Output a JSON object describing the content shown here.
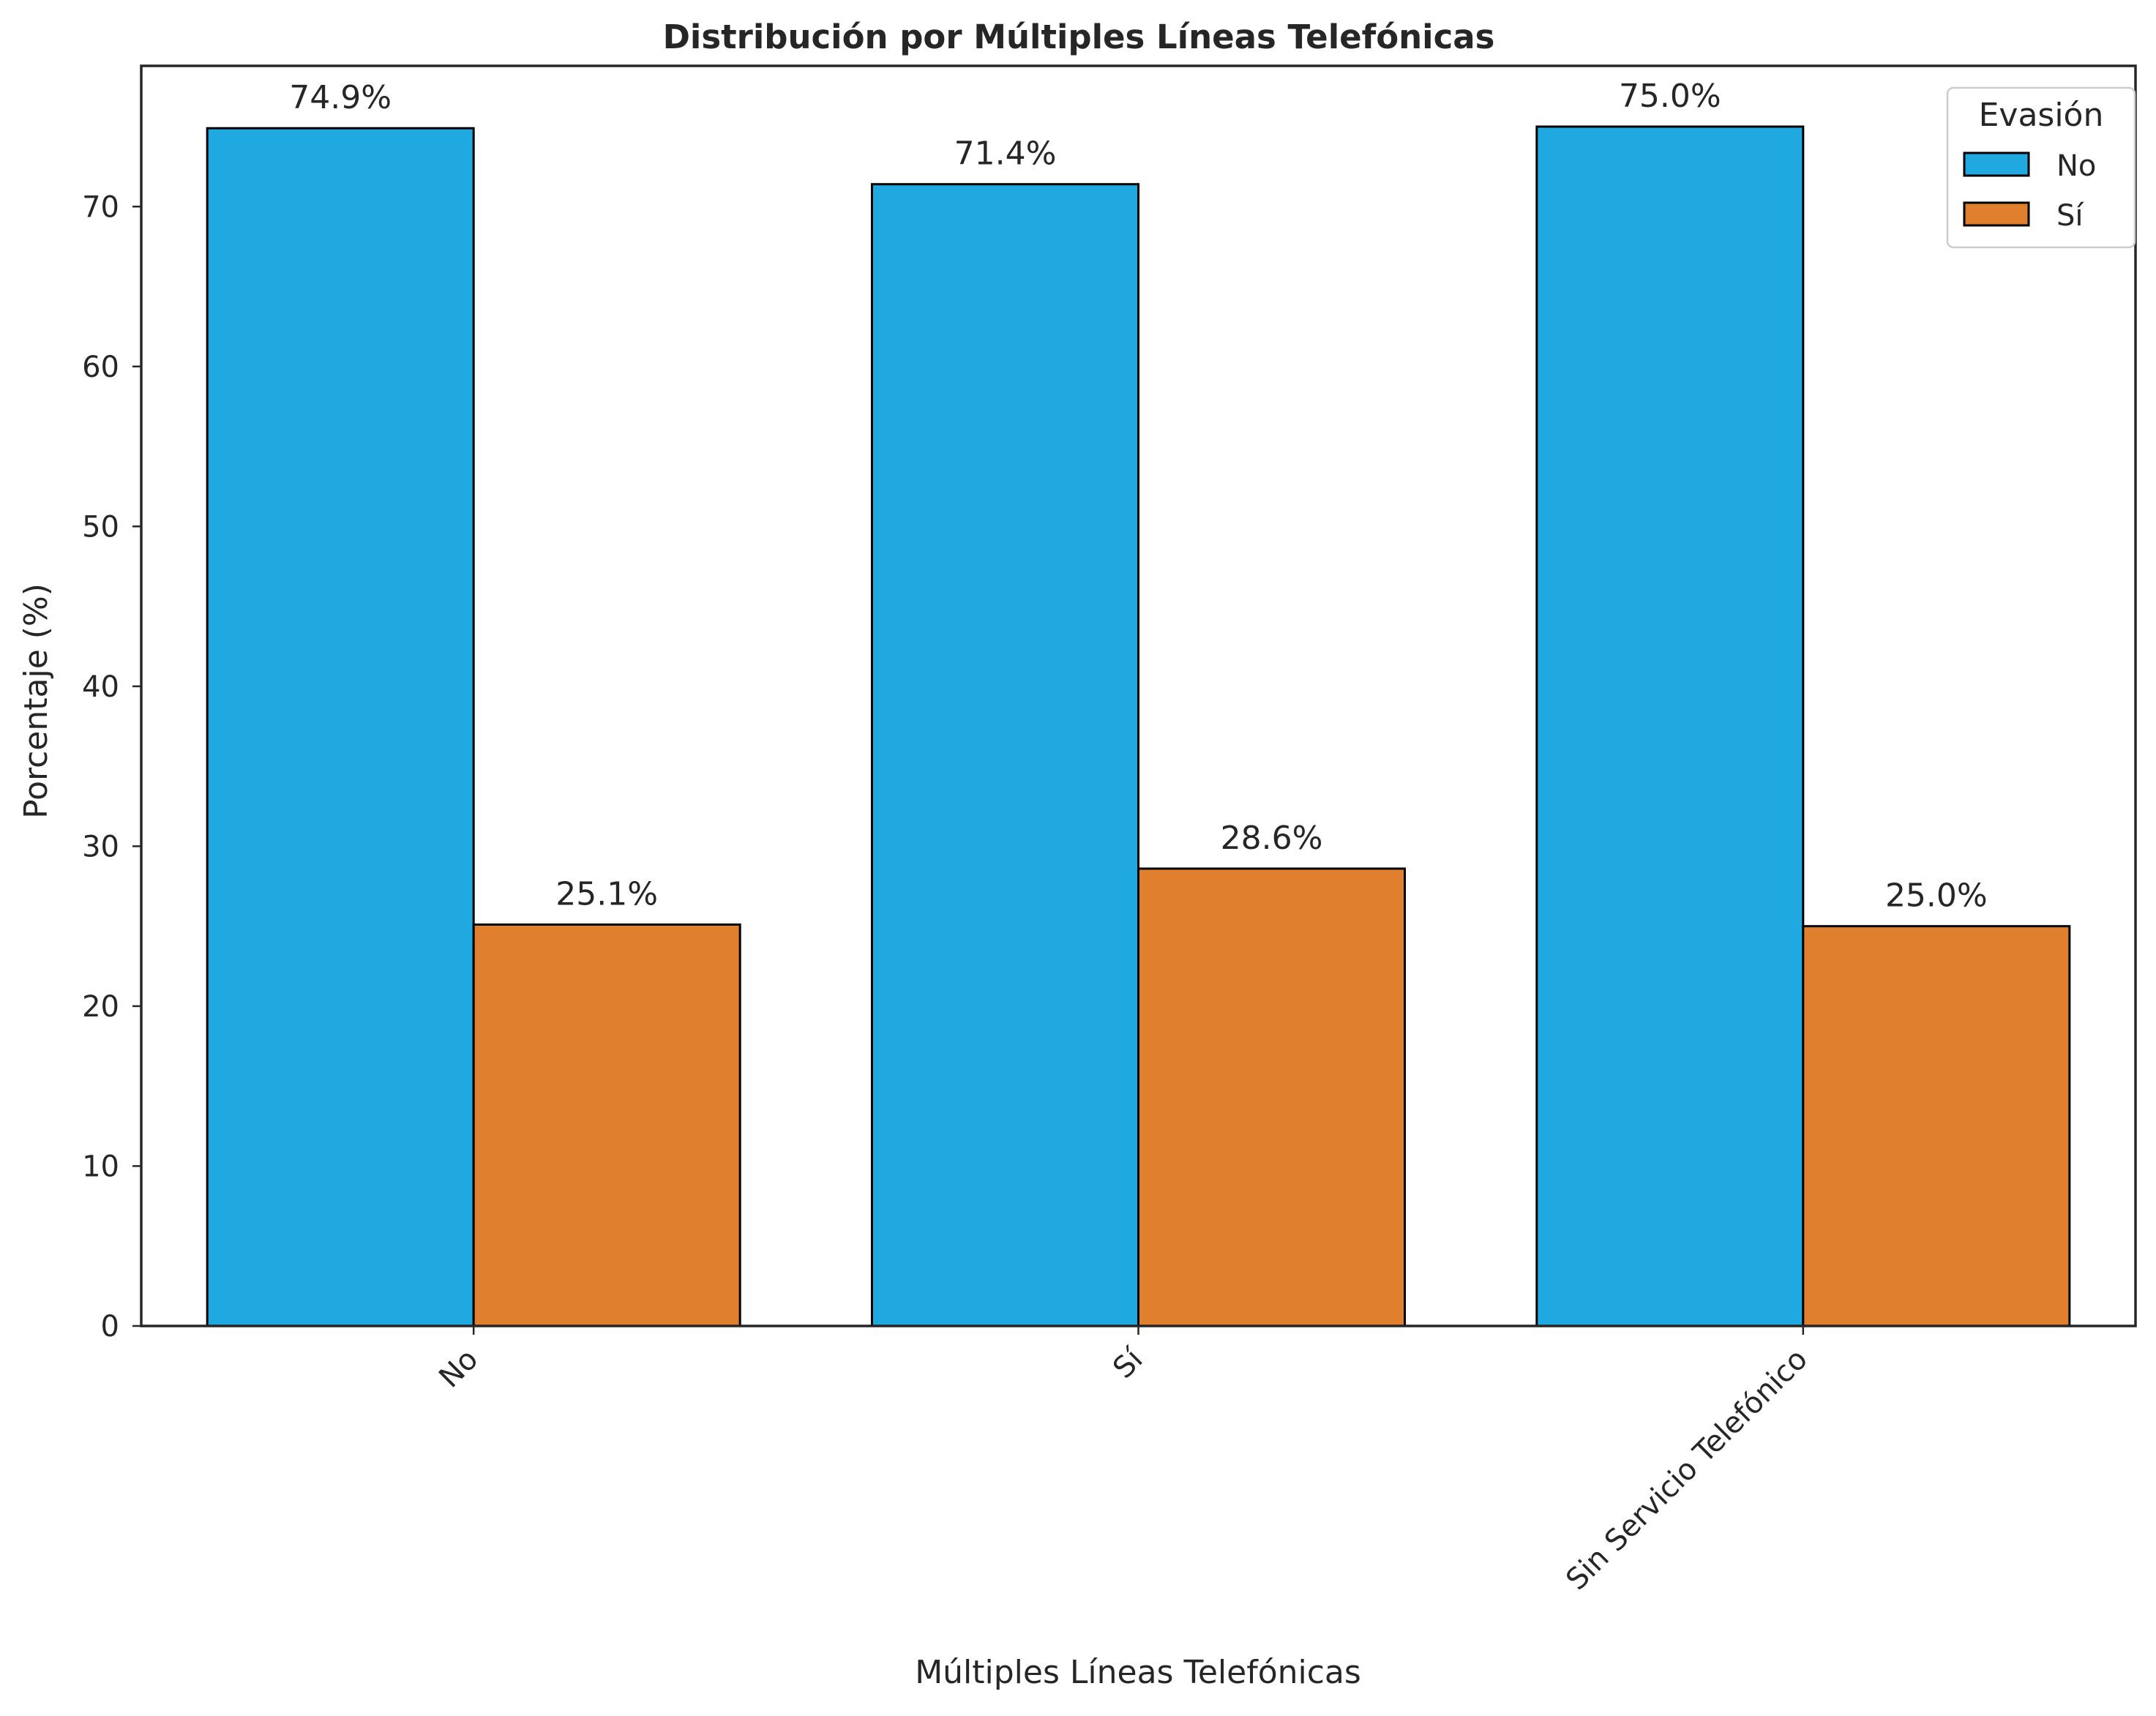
{
  "chart_data": {
    "type": "bar",
    "title": "Distribución por Múltiples Líneas Telefónicas",
    "xlabel": "Múltiples Líneas Telefónicas",
    "ylabel": "Porcentaje (%)",
    "categories": [
      "No",
      "Sí",
      "Sin Servicio Telefónico"
    ],
    "series": [
      {
        "name": "No",
        "values": [
          74.9,
          71.4,
          75.0
        ],
        "labels": [
          "74.9%",
          "71.4%",
          "75.0%"
        ],
        "color": "#1fa9e0"
      },
      {
        "name": "Sí",
        "values": [
          25.1,
          28.6,
          25.0
        ],
        "labels": [
          "25.1%",
          "28.6%",
          "25.0%"
        ],
        "color": "#e0802f"
      }
    ],
    "ylim": [
      0,
      78.8
    ],
    "yticks": [
      0,
      10,
      20,
      30,
      40,
      50,
      60,
      70
    ],
    "legend": {
      "title": "Evasión",
      "position": "top-right"
    },
    "grid": false,
    "xtick_rotation": 45
  }
}
